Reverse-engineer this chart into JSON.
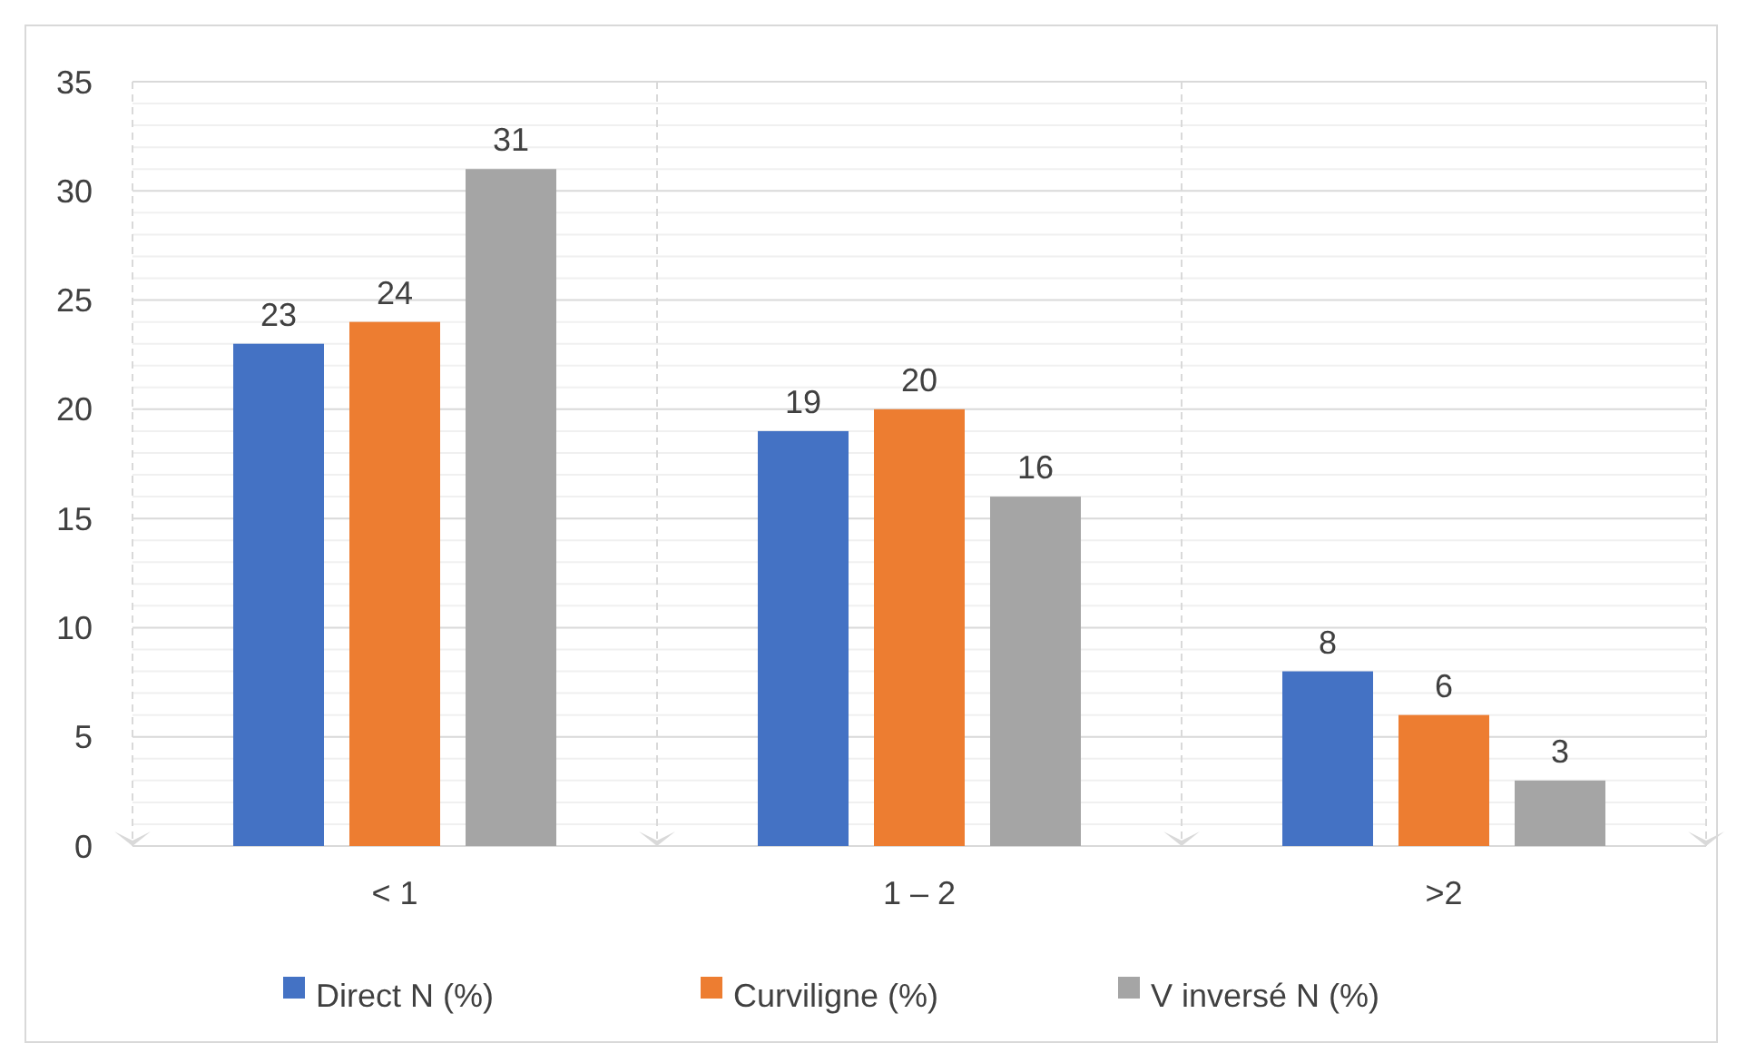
{
  "chart_data": {
    "type": "bar",
    "categories": [
      "< 1",
      "1 – 2",
      ">2"
    ],
    "series": [
      {
        "name": "Direct N (%)",
        "color": "#4472c4",
        "values": [
          23,
          19,
          8
        ]
      },
      {
        "name": "Curviligne (%)",
        "color": "#ed7d31",
        "values": [
          24,
          20,
          6
        ]
      },
      {
        "name": "V inversé N (%)",
        "color": "#a5a5a5",
        "values": [
          31,
          16,
          3
        ]
      }
    ],
    "ylim": [
      0,
      35
    ],
    "yticks": [
      0,
      {
        "value": 1,
        "label": null
      },
      {
        "value": 2,
        "label": null
      },
      {
        "value": 3,
        "label": null
      },
      {
        "value": 4,
        "label": null
      },
      5,
      {
        "value": 6,
        "label": null
      },
      {
        "value": 7,
        "label": null
      },
      {
        "value": 8,
        "label": null
      },
      {
        "value": 9,
        "label": null
      },
      10,
      {
        "value": 11,
        "label": null
      },
      {
        "value": 12,
        "label": null
      },
      {
        "value": 13,
        "label": null
      },
      {
        "value": 14,
        "label": null
      },
      15,
      {
        "value": 16,
        "label": null
      },
      {
        "value": 17,
        "label": null
      },
      {
        "value": 18,
        "label": null
      },
      {
        "value": 19,
        "label": null
      },
      20,
      {
        "value": 21,
        "label": null
      },
      {
        "value": 22,
        "label": null
      },
      {
        "value": 23,
        "label": null
      },
      {
        "value": 24,
        "label": null
      },
      25,
      {
        "value": 26,
        "label": null
      },
      {
        "value": 27,
        "label": null
      },
      {
        "value": 28,
        "label": null
      },
      {
        "value": 29,
        "label": null
      },
      30,
      {
        "value": 31,
        "label": null
      },
      {
        "value": 32,
        "label": null
      },
      {
        "value": 33,
        "label": null
      },
      {
        "value": 34,
        "label": null
      },
      35
    ],
    "grid": true,
    "data_labels": true,
    "legend": "bottom"
  }
}
